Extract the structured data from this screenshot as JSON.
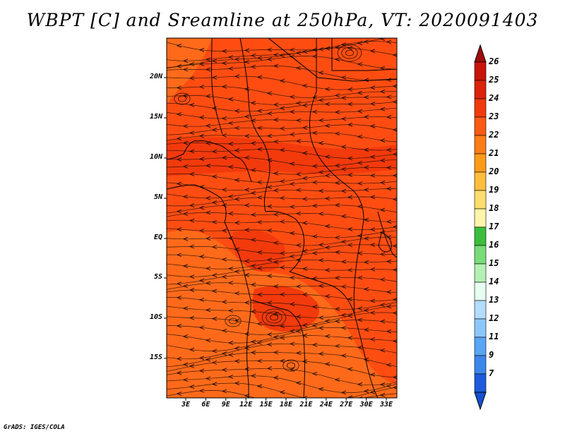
{
  "title": "WBPT [C] and Sreamline at 250hPa, VT: 2020091403",
  "credit": "GrADS: IGES/COLA",
  "map": {
    "lat_labels": [
      "20N",
      "15N",
      "10N",
      "5N",
      "EQ",
      "5S",
      "10S",
      "15S"
    ],
    "lon_labels": [
      "3E",
      "6E",
      "9E",
      "12E",
      "15E",
      "18E",
      "21E",
      "24E",
      "27E",
      "30E",
      "33E"
    ],
    "colors": {
      "field_main": "#ff4d12",
      "field_light": "#ff6a1a",
      "field_dark": "#f23a0c",
      "stream": "#1a0a05",
      "border": "#000000"
    }
  },
  "colorbar": {
    "labels": [
      "26",
      "25",
      "24",
      "23",
      "22",
      "21",
      "20",
      "19",
      "18",
      "17",
      "16",
      "15",
      "14",
      "13",
      "12",
      "11",
      "9",
      "7"
    ],
    "colors": [
      "#c8140a",
      "#dc230c",
      "#f23a0c",
      "#ff5a14",
      "#ff7d14",
      "#ff9b19",
      "#ffbe3c",
      "#ffdc6e",
      "#fff5aa",
      "#3cbe3c",
      "#78dc78",
      "#b4f0b4",
      "#e6fff0",
      "#b4dcff",
      "#8cc8ff",
      "#5aa5f5",
      "#3c87eb",
      "#1e5adc"
    ],
    "top_color": "#a00a0a",
    "bottom_color": "#1450d2"
  }
}
